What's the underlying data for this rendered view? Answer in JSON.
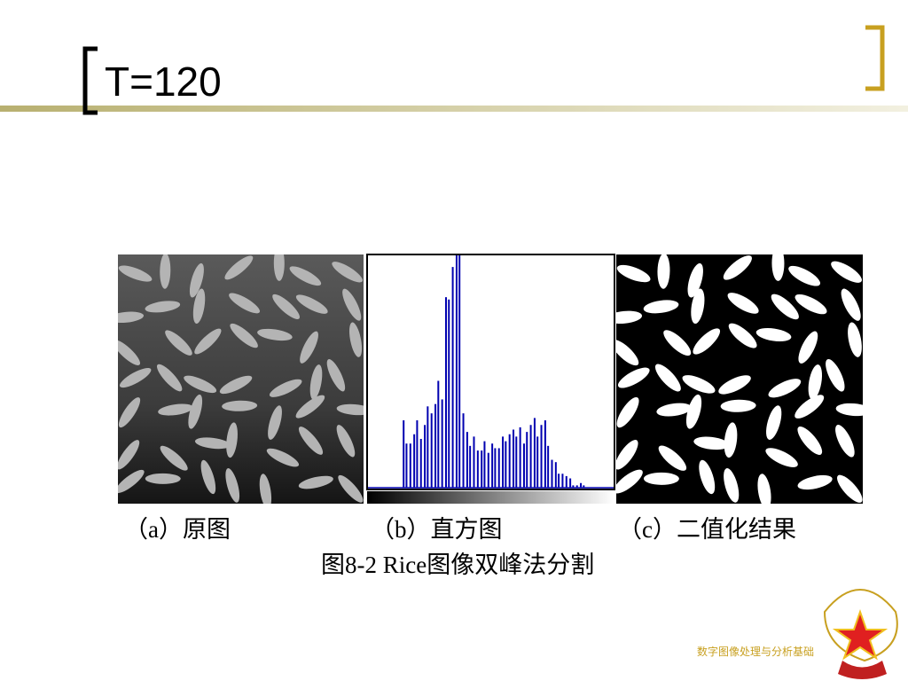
{
  "header": {
    "title": "T=120"
  },
  "figure": {
    "captions": [
      "（a）原图",
      "（b）直方图",
      "（c）二值化结果"
    ],
    "caption": "图8-2  Rice图像双峰法分割",
    "chart_data": {
      "type": "histogram",
      "color": "#0000b0",
      "xlim": [
        0,
        255
      ],
      "ylim": [
        0,
        100
      ],
      "x": [
        37,
        40,
        44,
        48,
        51,
        55,
        59,
        62,
        66,
        70,
        73,
        77,
        81,
        84,
        88,
        92,
        95,
        99,
        103,
        106,
        110,
        114,
        118,
        121,
        125,
        129,
        132,
        136,
        140,
        143,
        147,
        151,
        154,
        158,
        162,
        165,
        169,
        173,
        176,
        180,
        184,
        187,
        191,
        195,
        198,
        202,
        206,
        210,
        213,
        217,
        221,
        224
      ],
      "values": [
        29,
        19,
        19,
        23,
        29,
        21,
        27,
        35,
        32,
        36,
        46,
        38,
        82,
        81,
        95,
        100,
        100,
        32,
        24,
        18,
        22,
        16,
        16,
        20,
        15,
        19,
        17,
        17,
        22,
        20,
        23,
        25,
        22,
        26,
        19,
        24,
        27,
        30,
        22,
        27,
        29,
        18,
        12,
        11,
        6,
        6,
        5,
        4,
        1,
        1,
        2,
        1
      ]
    }
  },
  "footer": {
    "text": "数字图像处理与分析基础"
  }
}
